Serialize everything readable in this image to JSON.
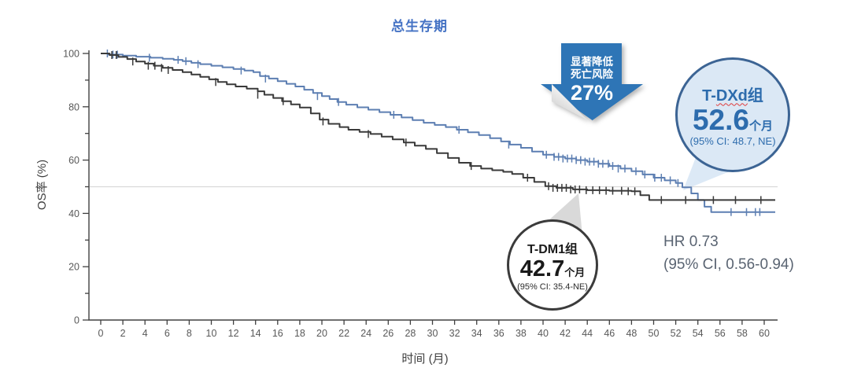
{
  "title": {
    "text": "总生存期"
  },
  "axes": {
    "x_label": "时间 (月)",
    "y_label": "OS率 (%)"
  },
  "colors": {
    "title": "#4472c4",
    "arrow_bg": "#2e75b6",
    "tdxd_curve": "#5d7fb2",
    "tdm1_curve": "#3a3a3a",
    "tdxd_badge_border": "#3c6494",
    "tdxd_badge_fill": "#dbe8f5",
    "tdxd_text": "#2d6cad",
    "tdm1_badge_border": "#3b3b3b",
    "gridline": "#d9d9d9",
    "axis": "#404040",
    "tick_text": "#595959",
    "hr_text": "#5a6472",
    "tail_blue": "#dce9f6",
    "tail_gray": "#d9d9d9"
  },
  "annotations": {
    "arrow": {
      "line1": "显著降低",
      "line2": "死亡风险",
      "value": "27%"
    },
    "tdxd_badge": {
      "group_prefix": "T-",
      "group_drug": "DXd",
      "group_suffix": "组",
      "value": "52.6",
      "unit": "个月",
      "ci": "(95% CI: 48.7, NE)"
    },
    "tdm1_badge": {
      "group": "T-DM1组",
      "value": "42.7",
      "unit": "个月",
      "ci": "(95% CI: 35.4-NE)"
    },
    "hr": {
      "line1": "HR 0.73",
      "line2": "(95% CI, 0.56-0.94)"
    }
  },
  "chart_data": {
    "type": "line",
    "subtype": "kaplan-meier-step",
    "title": "总生存期",
    "xlabel": "时间 (月)",
    "ylabel": "OS率 (%)",
    "xlim": [
      0,
      60
    ],
    "xtick_step": 2,
    "ylim": [
      0,
      100
    ],
    "ytick_step": 20,
    "ytick_minor_step": 10,
    "grid": false,
    "reference_line_y": 50,
    "legend_position": "none",
    "series": [
      {
        "name": "T-DXd",
        "color": "#5d7fb2",
        "median_months": 52.6,
        "median_ci": "95% CI: 48.7, NE",
        "points": [
          [
            0,
            100
          ],
          [
            0.7,
            99.6
          ],
          [
            2,
            99.2
          ],
          [
            3.2,
            98.8
          ],
          [
            4.5,
            98.4
          ],
          [
            5.6,
            98
          ],
          [
            6.6,
            97.6
          ],
          [
            7.4,
            97.1
          ],
          [
            8.2,
            96.5
          ],
          [
            9,
            96
          ],
          [
            10,
            95.4
          ],
          [
            11,
            94.8
          ],
          [
            12,
            94.2
          ],
          [
            13,
            93.6
          ],
          [
            13.8,
            93
          ],
          [
            14.4,
            91.5
          ],
          [
            15.2,
            90.6
          ],
          [
            16,
            89.6
          ],
          [
            16.8,
            88.6
          ],
          [
            17.6,
            87.6
          ],
          [
            18.4,
            86.4
          ],
          [
            19.2,
            85.2
          ],
          [
            20,
            84
          ],
          [
            20.7,
            82.9
          ],
          [
            21.4,
            81.8
          ],
          [
            22.2,
            80.8
          ],
          [
            23.2,
            79.8
          ],
          [
            24.2,
            78.9
          ],
          [
            25.2,
            78
          ],
          [
            26.2,
            77
          ],
          [
            27.2,
            76
          ],
          [
            28.2,
            75
          ],
          [
            29.2,
            74
          ],
          [
            30.2,
            73.2
          ],
          [
            31.2,
            72.4
          ],
          [
            32.2,
            71.4
          ],
          [
            33.2,
            70.4
          ],
          [
            34.2,
            69.4
          ],
          [
            35.2,
            68.2
          ],
          [
            36.2,
            67
          ],
          [
            37,
            65.8
          ],
          [
            38,
            64.6
          ],
          [
            39,
            63.2
          ],
          [
            40,
            62
          ],
          [
            41,
            61.2
          ],
          [
            42,
            60.6
          ],
          [
            43,
            60
          ],
          [
            44,
            59.4
          ],
          [
            45,
            58.6
          ],
          [
            46,
            57.8
          ],
          [
            47,
            56.8
          ],
          [
            48,
            55.8
          ],
          [
            49,
            54.6
          ],
          [
            50,
            53.4
          ],
          [
            51,
            52.4
          ],
          [
            52,
            51.4
          ],
          [
            52.6,
            49.8
          ],
          [
            53.4,
            47.5
          ],
          [
            54,
            45
          ],
          [
            54.6,
            42.5
          ],
          [
            55.2,
            40.5
          ],
          [
            61,
            40.5
          ]
        ],
        "censors": [
          [
            0.6,
            100
          ],
          [
            1.1,
            99.6
          ],
          [
            1.5,
            99.6
          ],
          [
            4.4,
            98.4
          ],
          [
            7,
            97.6
          ],
          [
            7.7,
            97.1
          ],
          [
            8.8,
            96
          ],
          [
            12.7,
            93.6
          ],
          [
            14.9,
            90.6
          ],
          [
            19.6,
            84
          ],
          [
            21.5,
            81.8
          ],
          [
            26.5,
            77
          ],
          [
            32.4,
            71.4
          ],
          [
            36.9,
            65.8
          ],
          [
            40.3,
            62
          ],
          [
            41,
            61.2
          ],
          [
            41.4,
            61.2
          ],
          [
            41.8,
            60.6
          ],
          [
            42.2,
            60.6
          ],
          [
            42.6,
            60.6
          ],
          [
            43,
            60
          ],
          [
            43.4,
            60
          ],
          [
            43.8,
            59.4
          ],
          [
            44.2,
            59.4
          ],
          [
            44.6,
            59.4
          ],
          [
            45,
            58.6
          ],
          [
            45.4,
            58.6
          ],
          [
            45.9,
            58.6
          ],
          [
            46.3,
            57.8
          ],
          [
            46.8,
            56.8
          ],
          [
            47.4,
            56.8
          ],
          [
            48.4,
            55.8
          ],
          [
            49.2,
            54.6
          ],
          [
            50.1,
            53.4
          ],
          [
            50.7,
            53.4
          ],
          [
            51.5,
            52.4
          ],
          [
            52.2,
            51.4
          ],
          [
            57,
            40.5
          ],
          [
            58.4,
            40.5
          ],
          [
            59.2,
            40.5
          ],
          [
            59.6,
            40.5
          ]
        ]
      },
      {
        "name": "T-DM1",
        "color": "#3a3a3a",
        "median_months": 42.7,
        "median_ci": "95% CI: 35.4-NE",
        "points": [
          [
            0,
            100
          ],
          [
            0.8,
            99.4
          ],
          [
            1.6,
            98.7
          ],
          [
            2.4,
            97.9
          ],
          [
            3.2,
            97
          ],
          [
            4,
            96.2
          ],
          [
            4.8,
            95.4
          ],
          [
            5.6,
            94.6
          ],
          [
            6.5,
            93.8
          ],
          [
            7.4,
            93
          ],
          [
            8.2,
            92.1
          ],
          [
            9,
            91.2
          ],
          [
            9.8,
            90.3
          ],
          [
            10.6,
            89.3
          ],
          [
            11.4,
            88.4
          ],
          [
            12.2,
            87.6
          ],
          [
            13.2,
            86.8
          ],
          [
            14.2,
            85.8
          ],
          [
            14.8,
            84.5
          ],
          [
            15.6,
            83.3
          ],
          [
            16.4,
            82.1
          ],
          [
            17.2,
            80.9
          ],
          [
            18,
            79.7
          ],
          [
            19,
            77.5
          ],
          [
            19.8,
            75.2
          ],
          [
            20.6,
            73.6
          ],
          [
            21.6,
            72.4
          ],
          [
            22.4,
            71.4
          ],
          [
            23.4,
            70.6
          ],
          [
            24.4,
            69.8
          ],
          [
            25.4,
            68.8
          ],
          [
            26.4,
            67.8
          ],
          [
            27.4,
            66.6
          ],
          [
            28.4,
            65.4
          ],
          [
            29.4,
            64.2
          ],
          [
            30.4,
            62.6
          ],
          [
            31.4,
            60.8
          ],
          [
            32.4,
            59
          ],
          [
            33.4,
            57.8
          ],
          [
            34.4,
            56.8
          ],
          [
            35.4,
            56.2
          ],
          [
            36.4,
            55.6
          ],
          [
            37.2,
            54.8
          ],
          [
            38.2,
            53.4
          ],
          [
            39.2,
            51.8
          ],
          [
            40.2,
            50.2
          ],
          [
            41.2,
            49.6
          ],
          [
            42.7,
            49
          ],
          [
            44,
            48.7
          ],
          [
            46,
            48.5
          ],
          [
            48,
            48.3
          ],
          [
            48.8,
            46.8
          ],
          [
            49.6,
            45
          ],
          [
            61,
            45
          ]
        ],
        "censors": [
          [
            1,
            99.4
          ],
          [
            1.4,
            99.4
          ],
          [
            2.9,
            97
          ],
          [
            4.3,
            95.4
          ],
          [
            4.9,
            95.4
          ],
          [
            5.5,
            94.6
          ],
          [
            6.1,
            93.8
          ],
          [
            10.4,
            89.3
          ],
          [
            14.2,
            84.5
          ],
          [
            16.5,
            82.1
          ],
          [
            20.1,
            74.5
          ],
          [
            24.2,
            69.8
          ],
          [
            27.6,
            66.6
          ],
          [
            33.5,
            57.8
          ],
          [
            38.6,
            53.4
          ],
          [
            40.5,
            50.2
          ],
          [
            40.9,
            49.6
          ],
          [
            41.3,
            49.6
          ],
          [
            41.7,
            49.6
          ],
          [
            42.1,
            49.6
          ],
          [
            42.5,
            49
          ],
          [
            42.9,
            49
          ],
          [
            43.3,
            49
          ],
          [
            43.9,
            48.7
          ],
          [
            44.5,
            48.7
          ],
          [
            45.1,
            48.7
          ],
          [
            45.7,
            48.5
          ],
          [
            46.3,
            48.5
          ],
          [
            47.1,
            48.5
          ],
          [
            47.7,
            48.3
          ],
          [
            48.3,
            48.3
          ],
          [
            50.7,
            45
          ],
          [
            52.9,
            45
          ],
          [
            55.4,
            45
          ],
          [
            57.4,
            45
          ],
          [
            59.7,
            45
          ]
        ]
      }
    ],
    "callout_tails": [
      {
        "name": "tdxd-callout-tail",
        "fill": "#dce9f6",
        "points": [
          [
            868,
            242
          ],
          [
            886,
            195
          ],
          [
            932,
            216
          ]
        ]
      },
      {
        "name": "tdm1-callout-tail",
        "fill": "#d9d9d9",
        "points": [
          [
            735,
            246
          ],
          [
            684,
            292
          ],
          [
            740,
            300
          ]
        ]
      }
    ]
  }
}
